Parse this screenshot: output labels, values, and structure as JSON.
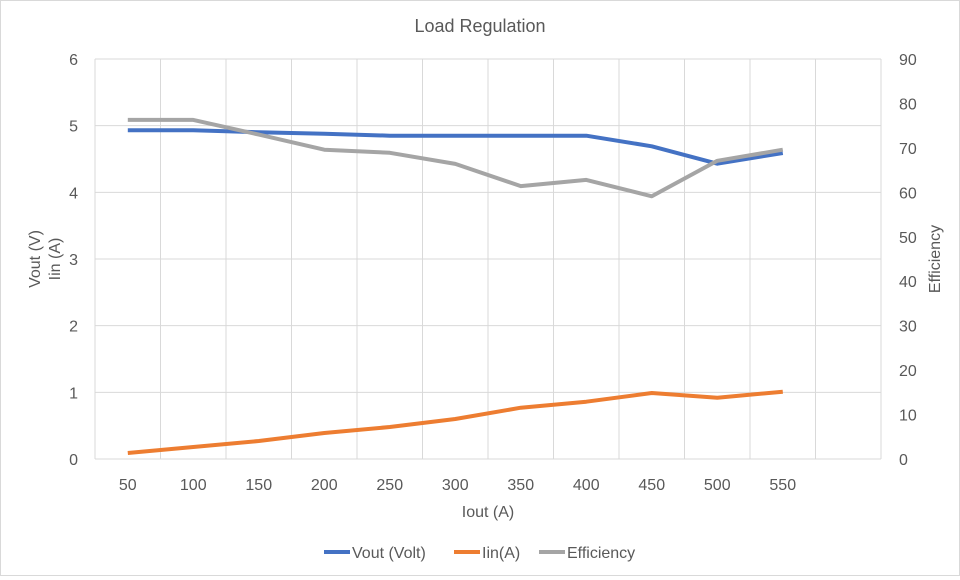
{
  "chart_data": {
    "type": "line",
    "title": "Load Regulation",
    "xlabel": "Iout (A)",
    "ylabel_left": [
      "Vout (V)",
      "Iin (A)"
    ],
    "ylabel_right": "Efficiency",
    "categories": [
      "50",
      "100",
      "150",
      "200",
      "250",
      "300",
      "350",
      "400",
      "450",
      "500",
      "550"
    ],
    "ylim_left": [
      0,
      6
    ],
    "ylim_right": [
      0,
      90
    ],
    "yticks_left": [
      "0",
      "1",
      "2",
      "3",
      "4",
      "5",
      "6"
    ],
    "yticks_right": [
      "0",
      "10",
      "20",
      "30",
      "40",
      "50",
      "60",
      "70",
      "80",
      "90"
    ],
    "grid": true,
    "legend_position": "bottom",
    "series": [
      {
        "name": "Vout (Volt)",
        "axis": "left",
        "color": "#4472c4",
        "values": [
          4.93,
          4.93,
          4.9,
          4.88,
          4.85,
          4.85,
          4.85,
          4.85,
          4.69,
          4.43,
          4.59
        ]
      },
      {
        "name": "Iin(A)",
        "axis": "left",
        "color": "#ed7d31",
        "values": [
          0.09,
          0.18,
          0.27,
          0.39,
          0.48,
          0.6,
          0.77,
          0.86,
          0.99,
          0.92,
          1.01
        ]
      },
      {
        "name": "Efficiency",
        "axis": "right",
        "color": "#a5a5a5",
        "values": [
          76.3,
          76.3,
          73.0,
          69.6,
          68.9,
          66.4,
          61.4,
          62.8,
          59.1,
          67.1,
          69.6
        ]
      }
    ]
  }
}
